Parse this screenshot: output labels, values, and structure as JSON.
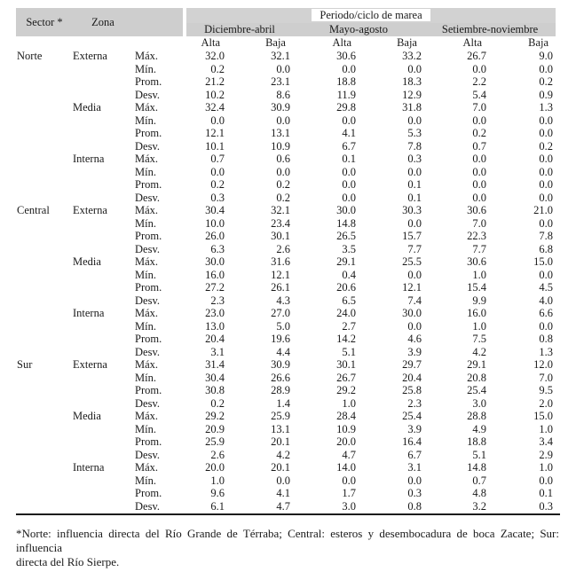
{
  "table": {
    "header": {
      "sector": "Sector *",
      "zona": "Zona",
      "period_title": "Periodo/ciclo de marea",
      "period_groups": [
        "Diciembre-abril",
        "Mayo-agosto",
        "Setiembre-noviembre"
      ],
      "tide_cycles": [
        "Alta",
        "Baja",
        "Alta",
        "Baja",
        "Alta",
        "Baja"
      ]
    },
    "stat_order": [
      "Máx.",
      "Mín.",
      "Prom.",
      "Desv."
    ],
    "sectors": [
      {
        "name": "Norte",
        "zonas": [
          {
            "name": "Externa",
            "stats": [
              {
                "label": "Máx.",
                "values": [
                  "32.0",
                  "32.1",
                  "30.6",
                  "33.2",
                  "26.7",
                  "9.0"
                ]
              },
              {
                "label": "Mín.",
                "values": [
                  "0.2",
                  "0.0",
                  "0.0",
                  "0.0",
                  "0.0",
                  "0.0"
                ]
              },
              {
                "label": "Prom.",
                "values": [
                  "21.2",
                  "23.1",
                  "18.8",
                  "18.3",
                  "2.2",
                  "0.2"
                ]
              },
              {
                "label": "Desv.",
                "values": [
                  "10.2",
                  "8.6",
                  "11.9",
                  "12.9",
                  "5.4",
                  "0.9"
                ]
              }
            ]
          },
          {
            "name": "Media",
            "stats": [
              {
                "label": "Máx.",
                "values": [
                  "32.4",
                  "30.9",
                  "29.8",
                  "31.8",
                  "7.0",
                  "1.3"
                ]
              },
              {
                "label": "Mín.",
                "values": [
                  "0.0",
                  "0.0",
                  "0.0",
                  "0.0",
                  "0.0",
                  "0.0"
                ]
              },
              {
                "label": "Prom.",
                "values": [
                  "12.1",
                  "13.1",
                  "4.1",
                  "5.3",
                  "0.2",
                  "0.0"
                ]
              },
              {
                "label": "Desv.",
                "values": [
                  "10.1",
                  "10.9",
                  "6.7",
                  "7.8",
                  "0.7",
                  "0.2"
                ]
              }
            ]
          },
          {
            "name": "Interna",
            "stats": [
              {
                "label": "Máx.",
                "values": [
                  "0.7",
                  "0.6",
                  "0.1",
                  "0.3",
                  "0.0",
                  "0.0"
                ]
              },
              {
                "label": "Mín.",
                "values": [
                  "0.0",
                  "0.0",
                  "0.0",
                  "0.0",
                  "0.0",
                  "0.0"
                ]
              },
              {
                "label": "Prom.",
                "values": [
                  "0.2",
                  "0.2",
                  "0.0",
                  "0.1",
                  "0.0",
                  "0.0"
                ]
              },
              {
                "label": "Desv.",
                "values": [
                  "0.3",
                  "0.2",
                  "0.0",
                  "0.1",
                  "0.0",
                  "0.0"
                ]
              }
            ]
          }
        ]
      },
      {
        "name": "Central",
        "zonas": [
          {
            "name": "Externa",
            "stats": [
              {
                "label": "Máx.",
                "values": [
                  "30.4",
                  "32.1",
                  "30.0",
                  "30.3",
                  "30.6",
                  "21.0"
                ]
              },
              {
                "label": "Mín.",
                "values": [
                  "10.0",
                  "23.4",
                  "14.8",
                  "0.0",
                  "7.0",
                  "0.0"
                ]
              },
              {
                "label": "Prom.",
                "values": [
                  "26.0",
                  "30.1",
                  "26.5",
                  "15.7",
                  "22.3",
                  "7.8"
                ]
              },
              {
                "label": "Desv.",
                "values": [
                  "6.3",
                  "2.6",
                  "3.5",
                  "7.7",
                  "7.7",
                  "6.8"
                ]
              }
            ]
          },
          {
            "name": "Media",
            "stats": [
              {
                "label": "Máx.",
                "values": [
                  "30.0",
                  "31.6",
                  "29.1",
                  "25.5",
                  "30.6",
                  "15.0"
                ]
              },
              {
                "label": "Mín.",
                "values": [
                  "16.0",
                  "12.1",
                  "0.4",
                  "0.0",
                  "1.0",
                  "0.0"
                ]
              },
              {
                "label": "Prom.",
                "values": [
                  "27.2",
                  "26.1",
                  "20.6",
                  "12.1",
                  "15.4",
                  "4.5"
                ]
              },
              {
                "label": "Desv.",
                "values": [
                  "2.3",
                  "4.3",
                  "6.5",
                  "7.4",
                  "9.9",
                  "4.0"
                ]
              }
            ]
          },
          {
            "name": "Interna",
            "stats": [
              {
                "label": "Máx.",
                "values": [
                  "23.0",
                  "27.0",
                  "24.0",
                  "30.0",
                  "16.0",
                  "6.6"
                ]
              },
              {
                "label": "Mín.",
                "values": [
                  "13.0",
                  "5.0",
                  "2.7",
                  "0.0",
                  "1.0",
                  "0.0"
                ]
              },
              {
                "label": "Prom.",
                "values": [
                  "20.4",
                  "19.6",
                  "14.2",
                  "4.6",
                  "7.5",
                  "0.8"
                ]
              },
              {
                "label": "Desv.",
                "values": [
                  "3.1",
                  "4.4",
                  "5.1",
                  "3.9",
                  "4.2",
                  "1.3"
                ]
              }
            ]
          }
        ]
      },
      {
        "name": "Sur",
        "zonas": [
          {
            "name": "Externa",
            "stats": [
              {
                "label": "Máx.",
                "values": [
                  "31.4",
                  "30.9",
                  "30.1",
                  "29.7",
                  "29.1",
                  "12.0"
                ]
              },
              {
                "label": "Mín.",
                "values": [
                  "30.4",
                  "26.6",
                  "26.7",
                  "20.4",
                  "20.8",
                  "7.0"
                ]
              },
              {
                "label": "Prom.",
                "values": [
                  "30.8",
                  "28.9",
                  "29.2",
                  "25.8",
                  "25.4",
                  "9.5"
                ]
              },
              {
                "label": "Desv.",
                "values": [
                  "0.2",
                  "1.4",
                  "1.0",
                  "2.3",
                  "3.0",
                  "2.0"
                ]
              }
            ]
          },
          {
            "name": "Media",
            "stats": [
              {
                "label": "Máx.",
                "values": [
                  "29.2",
                  "25.9",
                  "28.4",
                  "25.4",
                  "28.8",
                  "15.0"
                ]
              },
              {
                "label": "Mín.",
                "values": [
                  "20.9",
                  "13.1",
                  "10.9",
                  "3.9",
                  "4.9",
                  "1.0"
                ]
              },
              {
                "label": "Prom.",
                "values": [
                  "25.9",
                  "20.1",
                  "20.0",
                  "16.4",
                  "18.8",
                  "3.4"
                ]
              },
              {
                "label": "Desv.",
                "values": [
                  "2.6",
                  "4.2",
                  "4.7",
                  "6.7",
                  "5.1",
                  "2.9"
                ]
              }
            ]
          },
          {
            "name": "Interna",
            "stats": [
              {
                "label": "Máx.",
                "values": [
                  "20.0",
                  "20.1",
                  "14.0",
                  "3.1",
                  "14.8",
                  "1.0"
                ]
              },
              {
                "label": "Mín.",
                "values": [
                  "1.0",
                  "0.0",
                  "0.0",
                  "0.0",
                  "0.7",
                  "0.0"
                ]
              },
              {
                "label": "Prom.",
                "values": [
                  "9.6",
                  "4.1",
                  "1.7",
                  "0.3",
                  "4.8",
                  "0.1"
                ]
              },
              {
                "label": "Desv.",
                "values": [
                  "6.1",
                  "4.7",
                  "3.0",
                  "0.8",
                  "3.2",
                  "0.3"
                ]
              }
            ]
          }
        ]
      }
    ]
  },
  "footnote": {
    "lines": [
      "*Norte: influencia directa del Río Grande de Térraba; Central: esteros y desembocadura de boca Zacate; Sur: influencia",
      "directa del Río Sierpe."
    ],
    "full_text": "*Norte: influencia directa del Río Grande de Térraba; Central: esteros y desembocadura de boca Zacate; Sur: influencia directa del Río Sierpe."
  },
  "colors": {
    "header_shade": "#cecece",
    "header_shade_light": "#d2d2d2",
    "rule": "#1c1c1c"
  }
}
